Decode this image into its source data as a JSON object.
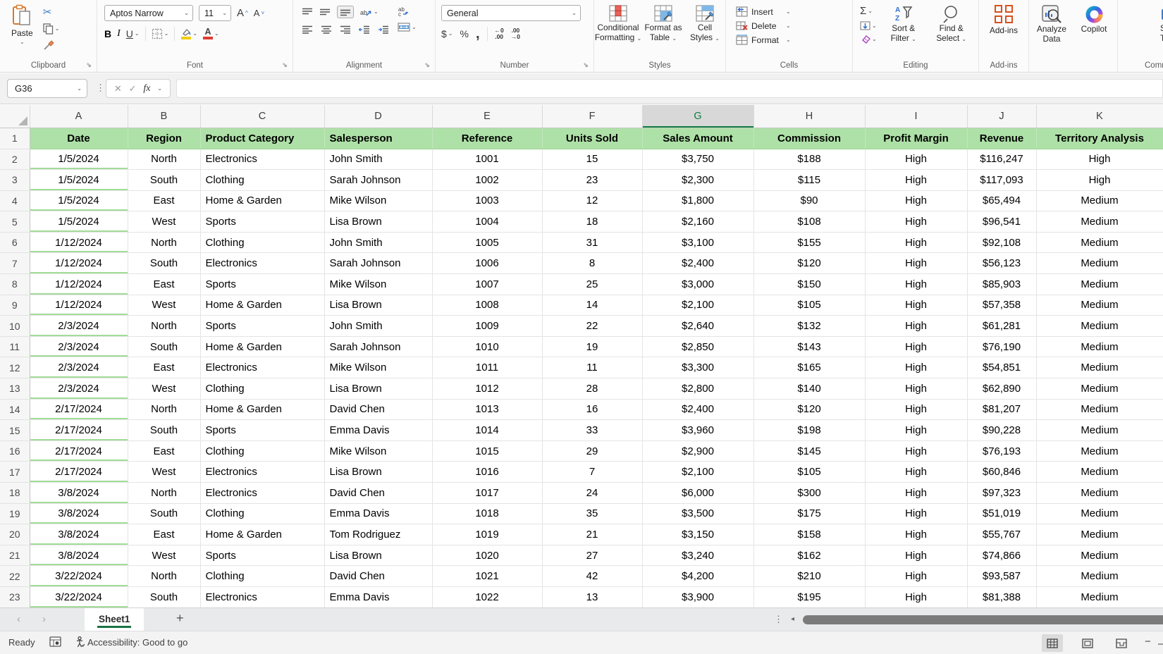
{
  "ribbon": {
    "groups": {
      "clipboard": {
        "label": "Clipboard",
        "paste": "Paste"
      },
      "font": {
        "label": "Font",
        "font_name": "Aptos Narrow",
        "font_size": "11",
        "bold": "B",
        "italic": "I",
        "underline": "U"
      },
      "alignment": {
        "label": "Alignment"
      },
      "number": {
        "label": "Number",
        "format": "General",
        "dollar": "$",
        "percent": "%",
        "comma": ",",
        "inc_top": "←0",
        "inc_bottom": ".00",
        "dec_top": ".00",
        "dec_bottom": "→0"
      },
      "styles": {
        "label": "Styles",
        "buttons": [
          {
            "l1": "Conditional",
            "l2": "Formatting"
          },
          {
            "l1": "Format as",
            "l2": "Table"
          },
          {
            "l1": "Cell",
            "l2": "Styles"
          }
        ]
      },
      "cells": {
        "label": "Cells",
        "insert": "Insert",
        "delete": "Delete",
        "format": "Format"
      },
      "editing": {
        "label": "Editing",
        "autosum": "Σ",
        "sort": {
          "l1": "Sort &",
          "l2": "Filter"
        },
        "find": {
          "l1": "Find &",
          "l2": "Select"
        }
      },
      "addins": {
        "label": "Add-ins",
        "button": "Add-ins"
      },
      "analyze": {
        "l1": "Analyze",
        "l2": "Data"
      },
      "copilot": "Copilot",
      "clipped": {
        "label": "Comman",
        "l1": "Sh",
        "l2": "Too"
      }
    }
  },
  "formula_bar": {
    "name_box": "G36",
    "fx": "fx",
    "formula": ""
  },
  "grid": {
    "selected_column": "G",
    "col_letters": [
      "A",
      "B",
      "C",
      "D",
      "E",
      "F",
      "G",
      "H",
      "I",
      "J",
      "K"
    ],
    "headers": [
      "Date",
      "Region",
      "Product Category",
      "Salesperson",
      "Reference",
      "Units Sold",
      "Sales Amount",
      "Commission",
      "Profit Margin",
      "Revenue",
      "Territory Analysis"
    ],
    "rows": [
      [
        "1/5/2024",
        "North",
        "Electronics",
        "John Smith",
        "1001",
        "15",
        "$3,750",
        "$188",
        "High",
        "$116,247",
        "High"
      ],
      [
        "1/5/2024",
        "South",
        "Clothing",
        "Sarah Johnson",
        "1002",
        "23",
        "$2,300",
        "$115",
        "High",
        "$117,093",
        "High"
      ],
      [
        "1/5/2024",
        "East",
        "Home & Garden",
        "Mike Wilson",
        "1003",
        "12",
        "$1,800",
        "$90",
        "High",
        "$65,494",
        "Medium"
      ],
      [
        "1/5/2024",
        "West",
        "Sports",
        "Lisa Brown",
        "1004",
        "18",
        "$2,160",
        "$108",
        "High",
        "$96,541",
        "Medium"
      ],
      [
        "1/12/2024",
        "North",
        "Clothing",
        "John Smith",
        "1005",
        "31",
        "$3,100",
        "$155",
        "High",
        "$92,108",
        "Medium"
      ],
      [
        "1/12/2024",
        "South",
        "Electronics",
        "Sarah Johnson",
        "1006",
        "8",
        "$2,400",
        "$120",
        "High",
        "$56,123",
        "Medium"
      ],
      [
        "1/12/2024",
        "East",
        "Sports",
        "Mike Wilson",
        "1007",
        "25",
        "$3,000",
        "$150",
        "High",
        "$85,903",
        "Medium"
      ],
      [
        "1/12/2024",
        "West",
        "Home & Garden",
        "Lisa Brown",
        "1008",
        "14",
        "$2,100",
        "$105",
        "High",
        "$57,358",
        "Medium"
      ],
      [
        "2/3/2024",
        "North",
        "Sports",
        "John Smith",
        "1009",
        "22",
        "$2,640",
        "$132",
        "High",
        "$61,281",
        "Medium"
      ],
      [
        "2/3/2024",
        "South",
        "Home & Garden",
        "Sarah Johnson",
        "1010",
        "19",
        "$2,850",
        "$143",
        "High",
        "$76,190",
        "Medium"
      ],
      [
        "2/3/2024",
        "East",
        "Electronics",
        "Mike Wilson",
        "1011",
        "11",
        "$3,300",
        "$165",
        "High",
        "$54,851",
        "Medium"
      ],
      [
        "2/3/2024",
        "West",
        "Clothing",
        "Lisa Brown",
        "1012",
        "28",
        "$2,800",
        "$140",
        "High",
        "$62,890",
        "Medium"
      ],
      [
        "2/17/2024",
        "North",
        "Home & Garden",
        "David Chen",
        "1013",
        "16",
        "$2,400",
        "$120",
        "High",
        "$81,207",
        "Medium"
      ],
      [
        "2/17/2024",
        "South",
        "Sports",
        "Emma Davis",
        "1014",
        "33",
        "$3,960",
        "$198",
        "High",
        "$90,228",
        "Medium"
      ],
      [
        "2/17/2024",
        "East",
        "Clothing",
        "Mike Wilson",
        "1015",
        "29",
        "$2,900",
        "$145",
        "High",
        "$76,193",
        "Medium"
      ],
      [
        "2/17/2024",
        "West",
        "Electronics",
        "Lisa Brown",
        "1016",
        "7",
        "$2,100",
        "$105",
        "High",
        "$60,846",
        "Medium"
      ],
      [
        "3/8/2024",
        "North",
        "Electronics",
        "David Chen",
        "1017",
        "24",
        "$6,000",
        "$300",
        "High",
        "$97,323",
        "Medium"
      ],
      [
        "3/8/2024",
        "South",
        "Clothing",
        "Emma Davis",
        "1018",
        "35",
        "$3,500",
        "$175",
        "High",
        "$51,019",
        "Medium"
      ],
      [
        "3/8/2024",
        "East",
        "Home & Garden",
        "Tom Rodriguez",
        "1019",
        "21",
        "$3,150",
        "$158",
        "High",
        "$55,767",
        "Medium"
      ],
      [
        "3/8/2024",
        "West",
        "Sports",
        "Lisa Brown",
        "1020",
        "27",
        "$3,240",
        "$162",
        "High",
        "$74,866",
        "Medium"
      ],
      [
        "3/22/2024",
        "North",
        "Clothing",
        "David Chen",
        "1021",
        "42",
        "$4,200",
        "$210",
        "High",
        "$93,587",
        "Medium"
      ],
      [
        "3/22/2024",
        "South",
        "Electronics",
        "Emma Davis",
        "1022",
        "13",
        "$3,900",
        "$195",
        "High",
        "$81,388",
        "Medium"
      ]
    ]
  },
  "sheet_bar": {
    "active_tab": "Sheet1",
    "add_sheet": "+"
  },
  "status_bar": {
    "mode": "Ready",
    "accessibility": "Accessibility: Good to go"
  },
  "colors": {
    "excel_green": "#107C41",
    "header_fill": "#AEE1A7",
    "addins_orange": "#D9501E",
    "fill_yellow": "#F2CC0C",
    "font_red": "#E03C31"
  }
}
